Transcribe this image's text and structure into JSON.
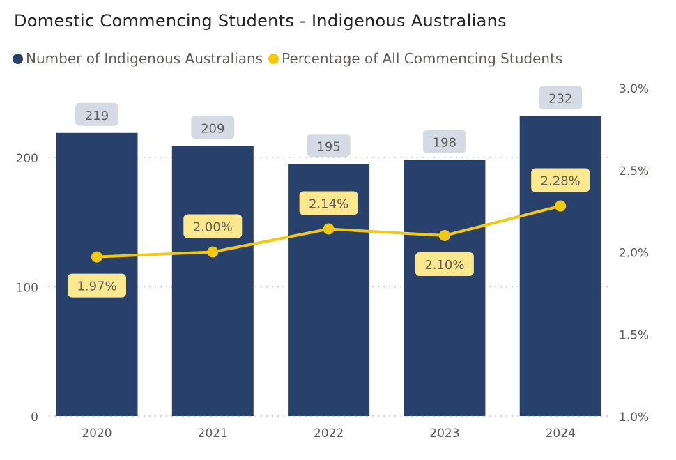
{
  "chart_data": {
    "type": "bar",
    "title": "Domestic Commencing Students - Indigenous Australians",
    "categories": [
      "2020",
      "2021",
      "2022",
      "2023",
      "2024"
    ],
    "series": [
      {
        "name": "Number of Indigenous Australians",
        "type": "bar",
        "axis": "left",
        "values": [
          219,
          209,
          195,
          198,
          232
        ],
        "labels": [
          "219",
          "209",
          "195",
          "198",
          "232"
        ],
        "color": "#28406C"
      },
      {
        "name": "Percentage of All Commencing Students",
        "type": "line",
        "axis": "right",
        "values": [
          1.97,
          2.0,
          2.14,
          2.1,
          2.28
        ],
        "labels": [
          "1.97%",
          "2.00%",
          "2.14%",
          "2.10%",
          "2.28%"
        ],
        "color": "#F2C811"
      }
    ],
    "left_axis": {
      "ylim": [
        0,
        253
      ],
      "ticks": [
        0,
        100,
        200
      ],
      "tick_labels": [
        "0",
        "100",
        "200"
      ]
    },
    "right_axis": {
      "ylim": [
        1.0,
        3.0
      ],
      "ticks": [
        1.0,
        1.5,
        2.0,
        2.5,
        3.0
      ],
      "tick_labels": [
        "1.0%",
        "1.5%",
        "2.0%",
        "2.5%",
        "3.0%"
      ]
    },
    "grid": true,
    "legend": "top-left"
  }
}
